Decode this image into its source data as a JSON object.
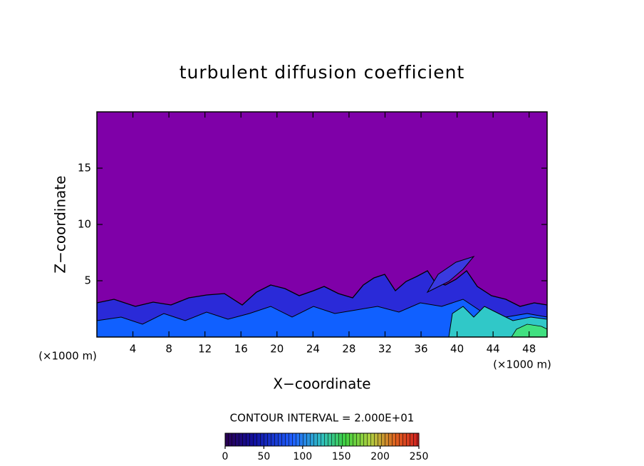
{
  "chart_data": {
    "type": "contour",
    "title": "turbulent diffusion coefficient",
    "x_label": "X−coordinate",
    "y_label": "Z−coordinate",
    "x_unit": "(×1000 m)",
    "contour_interval_label": "CONTOUR INTERVAL = 2.000E+01",
    "xlim": [
      0,
      50
    ],
    "xticks": [
      4,
      8,
      12,
      16,
      20,
      24,
      28,
      32,
      36,
      40,
      44,
      48
    ],
    "ylim": [
      0,
      20
    ],
    "yticks": [
      5,
      10,
      15
    ],
    "colorbar": {
      "lim": [
        0,
        250
      ],
      "ticks": [
        0,
        50,
        100,
        150,
        200,
        250
      ]
    }
  }
}
